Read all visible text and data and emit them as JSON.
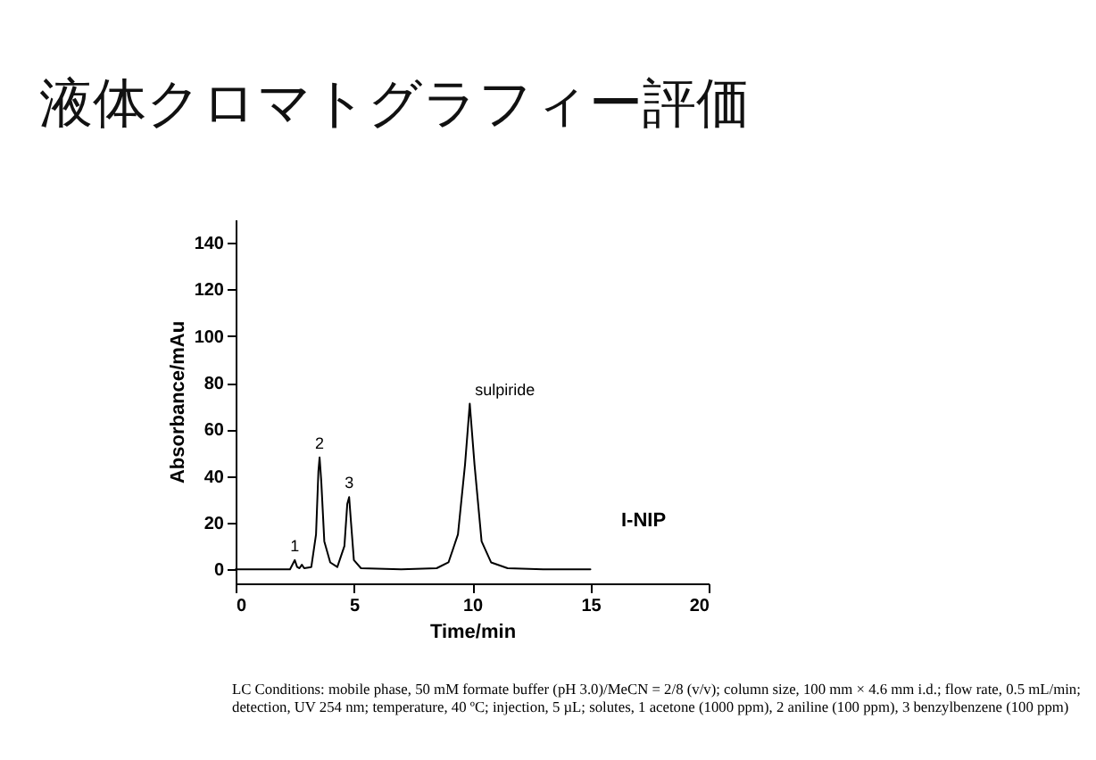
{
  "chart_data": {
    "type": "line",
    "title": "液体クロマトグラフィー評価",
    "xlabel": "Time/min",
    "ylabel": "Absorbance/mAu",
    "x": [
      0,
      2.3,
      2.45,
      2.5,
      2.6,
      2.7,
      2.8,
      2.9,
      3.2,
      3.4,
      3.5,
      3.55,
      3.62,
      3.75,
      4.0,
      4.3,
      4.6,
      4.72,
      4.8,
      4.88,
      5.0,
      5.3,
      7,
      8.5,
      9.0,
      9.4,
      9.7,
      9.9,
      10.1,
      10.4,
      10.8,
      11.5,
      13,
      15
    ],
    "series": [
      {
        "color": "#000000",
        "values": [
          0,
          0,
          3,
          4,
          1,
          0.5,
          2,
          0.5,
          1,
          15,
          42,
          48,
          38,
          12,
          3,
          1,
          10,
          28,
          31,
          20,
          4,
          0.5,
          0,
          0.5,
          3,
          15,
          45,
          71,
          45,
          12,
          3,
          0.5,
          0,
          0
        ]
      }
    ],
    "xlim": [
      0,
      20
    ],
    "xticks": [
      0,
      5,
      10,
      15,
      20
    ],
    "ylim": [
      -6,
      150
    ],
    "yticks": [
      0,
      20,
      40,
      60,
      80,
      100,
      120,
      140
    ],
    "grid": false,
    "legend": false,
    "marker": "none",
    "line_style": "solid",
    "annotations": [
      {
        "text": "1",
        "x": 2.5,
        "y": 4
      },
      {
        "text": "2",
        "x": 3.55,
        "y": 48
      },
      {
        "text": "3",
        "x": 4.8,
        "y": 31
      },
      {
        "text": "sulpiride",
        "x": 9.9,
        "y": 71
      },
      "I-NIP",
      "LC Conditions: mobile phase, 50 mM formate buffer (pH 3.0)/MeCN = 2/8 (v/v); column size, 100 mm × 4.6 mm i.d.;  flow rate, 0.5 mL/min; detection, UV 254 nm; temperature, 40 ºC; injection, 5 µL; solutes, 1 acetone (1000 ppm), 2 aniline (100 ppm), 3 benzylbenzene (100 ppm)"
    ]
  }
}
